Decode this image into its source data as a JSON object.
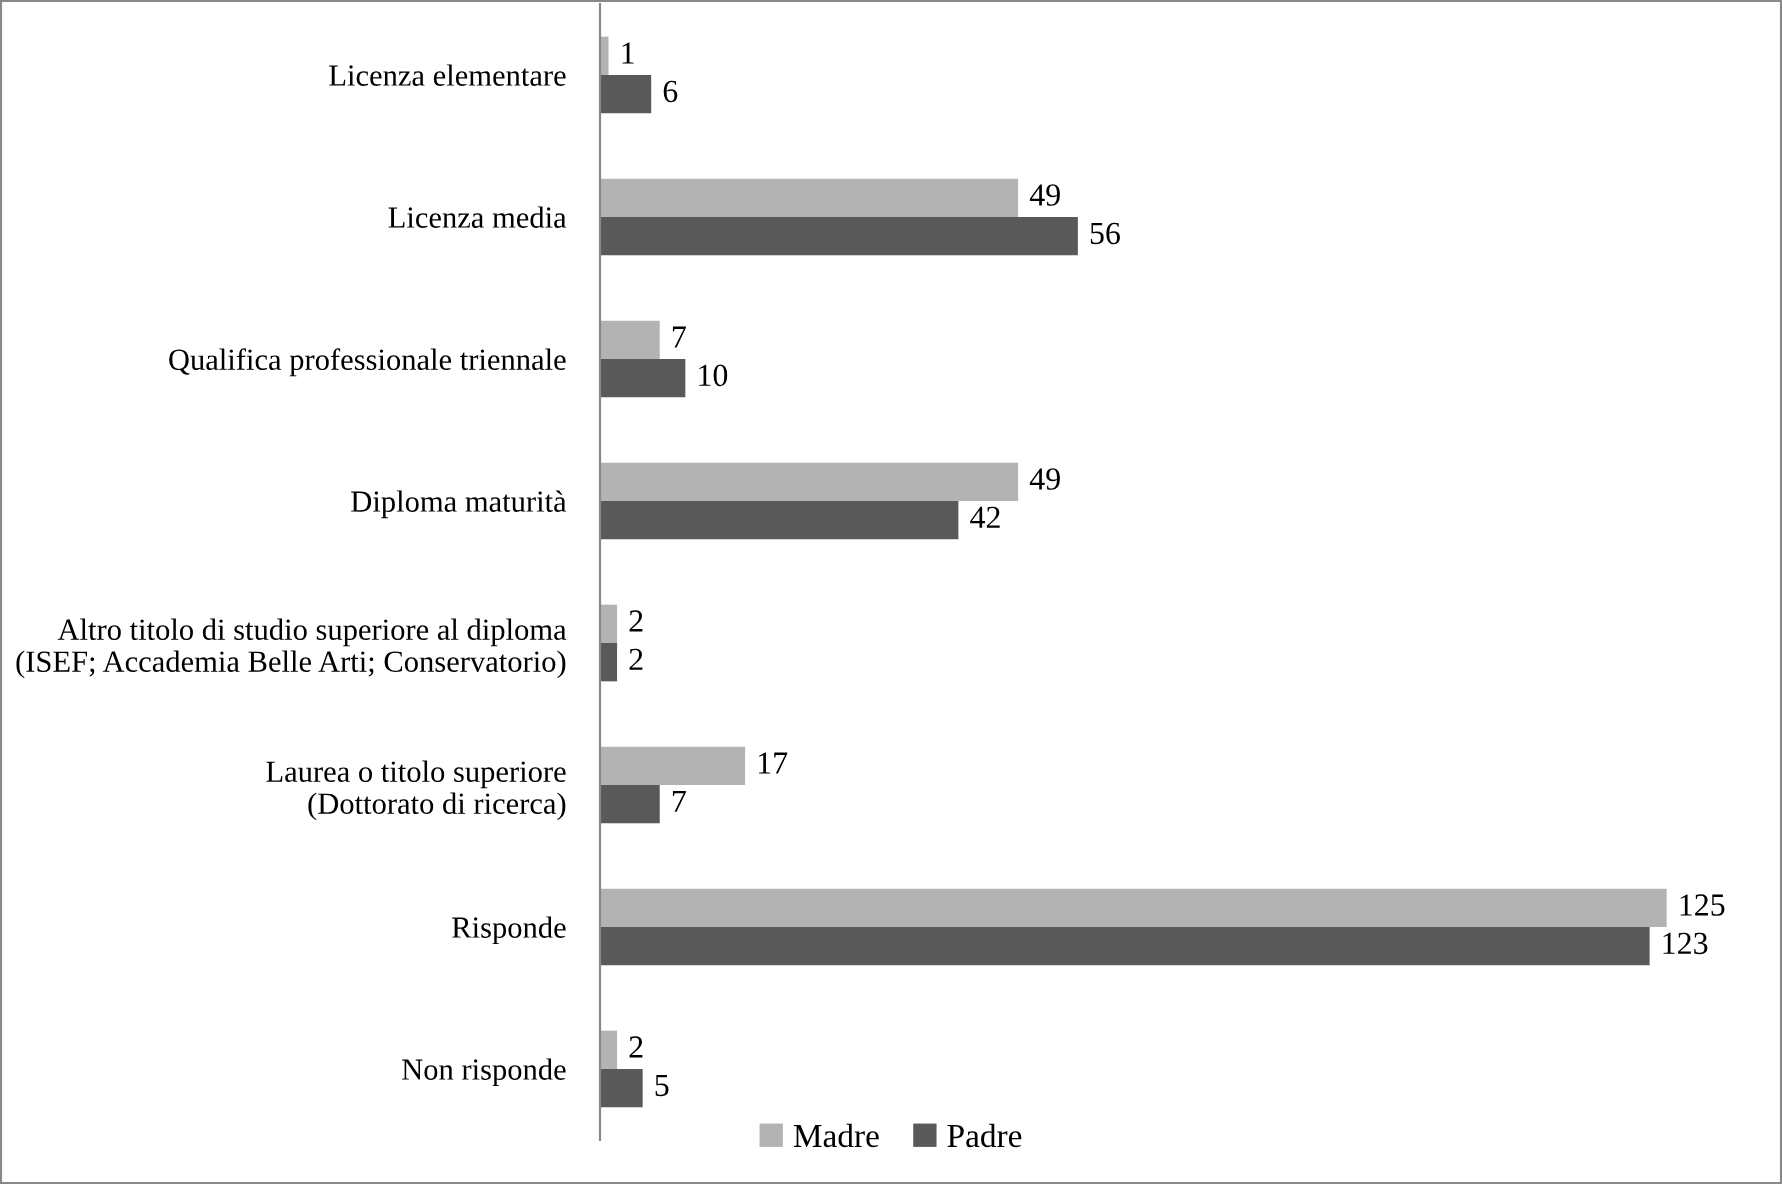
{
  "chart_data": {
    "type": "bar",
    "orientation": "horizontal",
    "categories": [
      "Licenza elementare",
      "Licenza media",
      "Qualifica professionale triennale",
      "Diploma maturità",
      "Altro titolo di studio superiore al diploma\n(ISEF; Accademia Belle Arti; Conservatorio)",
      "Laurea o titolo superiore\n(Dottorato di ricerca)",
      "Risponde",
      "Non risponde"
    ],
    "series": [
      {
        "name": "Madre",
        "color": "#b3b3b3",
        "values": [
          1,
          49,
          7,
          49,
          2,
          17,
          125,
          2
        ]
      },
      {
        "name": "Padre",
        "color": "#595959",
        "values": [
          6,
          56,
          10,
          42,
          2,
          7,
          123,
          5
        ]
      }
    ],
    "data_labels": true,
    "legend": "bottom",
    "grid": false
  }
}
